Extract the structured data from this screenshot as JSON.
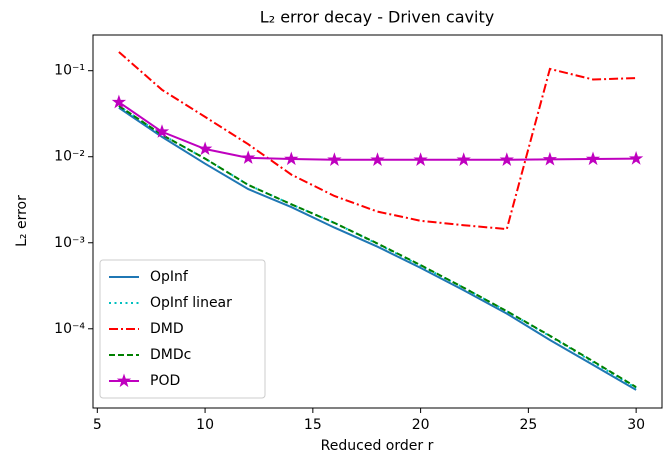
{
  "chart_data": {
    "type": "line",
    "title": "L₂ error decay - Driven cavity",
    "xlabel": "Reduced order r",
    "ylabel": "L₂ error",
    "x": [
      6,
      8,
      10,
      12,
      14,
      16,
      18,
      20,
      22,
      24,
      26,
      28,
      30
    ],
    "xlim": [
      4.8,
      31.2
    ],
    "xticks": [
      5,
      10,
      15,
      20,
      25,
      30
    ],
    "ylim": [
      0.26,
      1.2e-05
    ],
    "yscale": "log",
    "yticks": [
      {
        "value": 0.1,
        "label": "10⁻¹"
      },
      {
        "value": 0.01,
        "label": "10⁻²"
      },
      {
        "value": 0.001,
        "label": "10⁻³"
      },
      {
        "value": 0.0001,
        "label": "10⁻⁴"
      }
    ],
    "legend": "lower left",
    "series": [
      {
        "name": "OpInf",
        "color": "#1f77b4",
        "style": "solid",
        "values": [
          0.037,
          0.017,
          0.0083,
          0.0042,
          0.0026,
          0.0015,
          0.0009,
          0.00051,
          0.00028,
          0.00015,
          7.4e-05,
          3.8e-05,
          1.95e-05
        ]
      },
      {
        "name": "OpInf linear",
        "color": "#00bfbf",
        "style": "dotted",
        "values": [
          0.039,
          0.018,
          0.0095,
          0.0047,
          0.0028,
          0.0017,
          0.00097,
          0.00054,
          0.0003,
          0.00016,
          8.2e-05,
          4.1e-05,
          2.05e-05
        ]
      },
      {
        "name": "DMD",
        "color": "#ff0000",
        "style": "dashdot",
        "values": [
          0.165,
          0.06,
          0.029,
          0.014,
          0.0062,
          0.0035,
          0.0023,
          0.0018,
          0.0016,
          0.00144,
          0.105,
          0.079,
          0.082
        ]
      },
      {
        "name": "DMDc",
        "color": "#008000",
        "style": "dashed",
        "values": [
          0.039,
          0.018,
          0.0095,
          0.0047,
          0.0028,
          0.0017,
          0.00098,
          0.00055,
          0.0003,
          0.00016,
          8.3e-05,
          4.2e-05,
          2.1e-05
        ]
      },
      {
        "name": "POD",
        "color": "#bf00bf",
        "style": "solid",
        "marker": "star",
        "values": [
          0.043,
          0.0195,
          0.0123,
          0.0097,
          0.0094,
          0.0092,
          0.0092,
          0.0092,
          0.0092,
          0.0092,
          0.0093,
          0.0094,
          0.0095
        ]
      }
    ]
  }
}
